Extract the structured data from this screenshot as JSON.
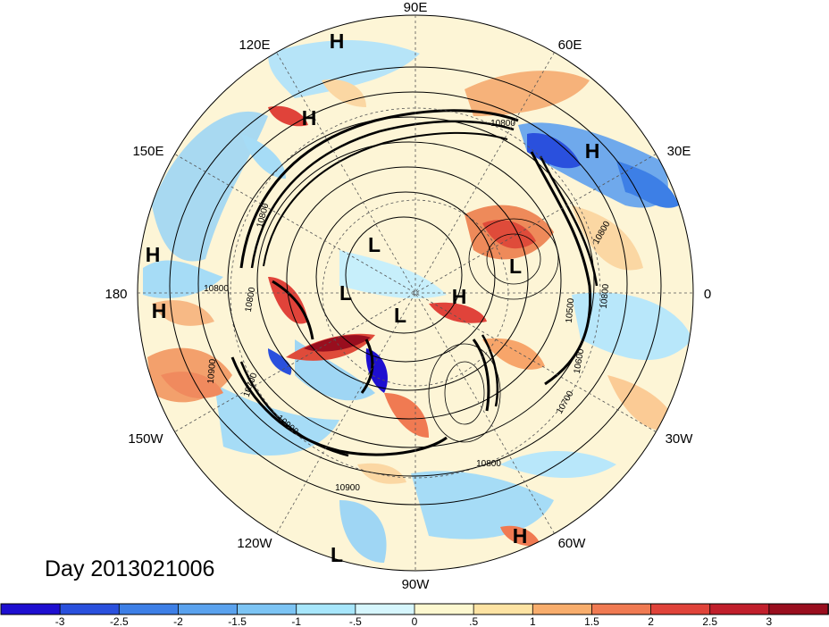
{
  "title": "Day 2013021006",
  "longitude_labels": [
    {
      "id": "lon-90e",
      "text": "90E"
    },
    {
      "id": "lon-60e",
      "text": "60E"
    },
    {
      "id": "lon-30e",
      "text": "30E"
    },
    {
      "id": "lon-0",
      "text": "0"
    },
    {
      "id": "lon-30w",
      "text": "30W"
    },
    {
      "id": "lon-60w",
      "text": "60W"
    },
    {
      "id": "lon-90w",
      "text": "90W"
    },
    {
      "id": "lon-120w",
      "text": "120W"
    },
    {
      "id": "lon-150w",
      "text": "150W"
    },
    {
      "id": "lon-180",
      "text": "180"
    },
    {
      "id": "lon-150e",
      "text": "150E"
    },
    {
      "id": "lon-120e",
      "text": "120E"
    }
  ],
  "pressure_centers": [
    {
      "id": "h-1",
      "text": "H"
    },
    {
      "id": "h-2",
      "text": "H"
    },
    {
      "id": "h-3",
      "text": "H"
    },
    {
      "id": "h-4",
      "text": "H"
    },
    {
      "id": "h-5",
      "text": "H"
    },
    {
      "id": "h-6",
      "text": "H"
    },
    {
      "id": "h-7",
      "text": "H"
    },
    {
      "id": "l-1",
      "text": "L"
    },
    {
      "id": "l-2",
      "text": "L"
    },
    {
      "id": "l-3",
      "text": "L"
    },
    {
      "id": "l-4",
      "text": "L"
    },
    {
      "id": "l-5",
      "text": "L"
    }
  ],
  "contour_labels": [
    {
      "id": "c1",
      "text": "10800"
    },
    {
      "id": "c2",
      "text": "10800"
    },
    {
      "id": "c3",
      "text": "10800"
    },
    {
      "id": "c4",
      "text": "10800"
    },
    {
      "id": "c5",
      "text": "10900"
    },
    {
      "id": "c6",
      "text": "10900"
    },
    {
      "id": "c7",
      "text": "10800"
    },
    {
      "id": "c8",
      "text": "10700"
    },
    {
      "id": "c9",
      "text": "10600"
    },
    {
      "id": "c10",
      "text": "10500"
    },
    {
      "id": "c11",
      "text": "10800"
    },
    {
      "id": "c12",
      "text": "10900"
    },
    {
      "id": "c13",
      "text": "10700"
    },
    {
      "id": "c14",
      "text": "10800"
    }
  ],
  "colorbar": {
    "colors": [
      "#1e0fd0",
      "#2a50dd",
      "#3d7fe6",
      "#5aa2ee",
      "#7cc4f4",
      "#a7e6fb",
      "#d6f6fd",
      "#fdf8d0",
      "#fde3a3",
      "#f8ad6c",
      "#f07a52",
      "#e0433a",
      "#c11f2c",
      "#990e1e"
    ],
    "ticks": [
      "-3",
      "-2.5",
      "-2",
      "-1.5",
      "-1",
      "-.5",
      "0",
      ".5",
      "1",
      "1.5",
      "2",
      "2.5",
      "3"
    ]
  }
}
